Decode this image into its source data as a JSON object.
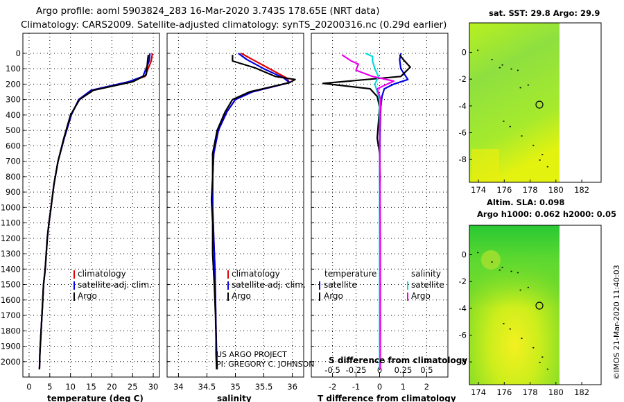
{
  "header": {
    "title_line1": "Argo profile: aoml 5903824_283 16-Mar-2020 3.743S 178.65E (NRT data)",
    "title_line2": "Climatology: CARS2009. Satellite-adjusted climatology: synTS_20200316.nc (0.29d earlier)"
  },
  "colors": {
    "climatology": "#e00000",
    "satellite": "#0000e0",
    "argo": "#000000",
    "sal_sat": "#00dddd",
    "sal_argo": "#ee00ee"
  },
  "chart_data": [
    {
      "type": "line",
      "name": "temperature-profile",
      "xlabel": "temperature (deg C)",
      "xlim": [
        -1.5,
        31.5
      ],
      "xticks": [
        0,
        5,
        10,
        15,
        20,
        25,
        30
      ],
      "ylim": [
        2100,
        0
      ],
      "yticks": [
        0,
        100,
        200,
        300,
        400,
        500,
        600,
        700,
        800,
        900,
        1000,
        1100,
        1200,
        1300,
        1400,
        1500,
        1600,
        1700,
        1800,
        1900,
        2000
      ],
      "legend": {
        "position": "lower-right",
        "entries": [
          "climatology",
          "satellite-adj. clim.",
          "Argo"
        ]
      },
      "series": [
        {
          "name": "climatology",
          "color": "#e00000",
          "x": [
            29.8,
            29.5,
            28,
            24,
            15,
            12,
            10.2,
            8.5,
            7,
            6,
            5.3,
            4.8,
            4.4,
            3.9,
            3.5,
            3.2,
            2.9,
            2.6,
            2.5
          ],
          "y": [
            0,
            50,
            150,
            185,
            240,
            300,
            400,
            550,
            700,
            850,
            1000,
            1100,
            1200,
            1400,
            1500,
            1650,
            1800,
            1950,
            2050
          ]
        },
        {
          "name": "satellite-adj. clim.",
          "color": "#0000e0",
          "x": [
            29.2,
            29,
            27.5,
            24,
            15,
            12,
            10.2,
            8.5,
            7,
            6,
            5.3,
            4.8,
            4.4,
            3.9,
            3.5,
            3.2,
            2.9,
            2.6,
            2.5
          ],
          "y": [
            0,
            50,
            150,
            185,
            240,
            300,
            400,
            550,
            700,
            850,
            1000,
            1100,
            1200,
            1400,
            1500,
            1650,
            1800,
            1950,
            2050
          ]
        },
        {
          "name": "Argo",
          "color": "#000000",
          "x": [
            28.8,
            28.6,
            28.3,
            25,
            15.5,
            12.2,
            10,
            8.4,
            7,
            6,
            5.3,
            4.8,
            4.4,
            3.9,
            3.5,
            3.2,
            2.9,
            2.6,
            2.5
          ],
          "y": [
            10,
            60,
            140,
            185,
            240,
            300,
            400,
            550,
            700,
            850,
            1000,
            1100,
            1200,
            1400,
            1500,
            1650,
            1800,
            1950,
            2050
          ]
        }
      ]
    },
    {
      "type": "line",
      "name": "salinity-profile",
      "xlabel": "salinity",
      "xlim": [
        33.8,
        36.2
      ],
      "xticks": [
        34,
        34.5,
        35,
        35.5,
        36
      ],
      "ylim": [
        2100,
        0
      ],
      "legend": {
        "position": "lower-right",
        "entries": [
          "climatology",
          "satellite-adj. clim.",
          "Argo"
        ]
      },
      "annotation": [
        "US ARGO PROJECT",
        "PI: GREGORY C. JOHNSON"
      ],
      "series": [
        {
          "name": "climatology",
          "color": "#e00000",
          "x": [
            35.1,
            35.3,
            35.6,
            35.9,
            35.95,
            35.3,
            35.0,
            34.85,
            34.7,
            34.62,
            34.6,
            34.6,
            34.62,
            34.64,
            34.65,
            34.66,
            34.67,
            34.68
          ],
          "y": [
            0,
            40,
            100,
            160,
            190,
            250,
            300,
            380,
            500,
            650,
            800,
            1000,
            1200,
            1400,
            1600,
            1800,
            1950,
            2050
          ]
        },
        {
          "name": "satellite-adj. clim.",
          "color": "#0000e0",
          "x": [
            35.05,
            35.2,
            35.5,
            35.85,
            35.95,
            35.3,
            35.0,
            34.85,
            34.7,
            34.62,
            34.6,
            34.6,
            34.62,
            34.64,
            34.65,
            34.66,
            34.67,
            34.68
          ],
          "y": [
            0,
            40,
            100,
            160,
            190,
            250,
            300,
            380,
            500,
            650,
            800,
            1000,
            1200,
            1400,
            1600,
            1800,
            1950,
            2050
          ]
        },
        {
          "name": "Argo",
          "color": "#000000",
          "x": [
            34.95,
            34.95,
            35.35,
            35.7,
            36.05,
            35.95,
            35.25,
            34.95,
            34.82,
            34.68,
            34.6,
            34.6,
            34.58,
            34.6,
            34.6,
            34.63,
            34.65,
            34.66,
            34.66,
            34.67
          ],
          "y": [
            10,
            50,
            95,
            150,
            170,
            190,
            250,
            300,
            380,
            500,
            650,
            800,
            950,
            1100,
            1300,
            1500,
            1700,
            1850,
            1950,
            2050
          ]
        }
      ]
    },
    {
      "type": "line",
      "name": "difference-profile",
      "xlabel": "T difference from climatology",
      "xlabel2": "S difference from climatology",
      "xlim": [
        -2.9,
        2.9
      ],
      "xticks": [
        -2,
        -1,
        0,
        1,
        2
      ],
      "xticks2": [
        "-0.5",
        "-0.25",
        "0",
        "0.25",
        "0.5"
      ],
      "ylim": [
        2100,
        0
      ],
      "legend": {
        "position": "lower",
        "temperature": [
          "satellite",
          "Argo"
        ],
        "salinity": [
          "satellite",
          "Argo"
        ]
      },
      "legend_titles": {
        "temperature": "temperature",
        "salinity": "salinity"
      },
      "series": [
        {
          "name": "T satellite",
          "color": "#0000e0",
          "x": [
            0.9,
            0.85,
            0.9,
            1.2,
            0.6,
            0.2,
            0.1,
            0.05,
            0.02,
            0.0,
            0.02,
            0.02,
            0.02
          ],
          "y": [
            0,
            40,
            100,
            170,
            200,
            230,
            280,
            350,
            500,
            800,
            1200,
            1600,
            2050
          ]
        },
        {
          "name": "T Argo",
          "color": "#000000",
          "x": [
            0.85,
            1.0,
            1.3,
            0.9,
            -2.4,
            -0.4,
            -0.1,
            0.0,
            -0.05,
            -0.1,
            0.0,
            0.02,
            0.0,
            0.02,
            0.03,
            0.02
          ],
          "y": [
            10,
            40,
            90,
            150,
            195,
            230,
            280,
            350,
            450,
            550,
            650,
            800,
            1000,
            1400,
            1800,
            2050
          ]
        },
        {
          "name": "S satellite",
          "color": "#00dddd",
          "x": [
            -0.6,
            -0.3,
            -0.3,
            -0.2,
            -0.05,
            -0.2,
            0.0,
            0.0,
            0.0,
            0.0,
            0.0
          ],
          "y": [
            0,
            20,
            50,
            100,
            150,
            200,
            300,
            500,
            800,
            1400,
            2050
          ]
        },
        {
          "name": "S Argo",
          "color": "#ee00ee",
          "x": [
            -1.6,
            -1.2,
            -0.9,
            -1.0,
            -0.3,
            0.6,
            -0.1,
            0.05,
            0.0,
            0.03,
            0.03
          ],
          "y": [
            10,
            50,
            70,
            110,
            150,
            180,
            230,
            300,
            500,
            1200,
            2050
          ]
        }
      ]
    }
  ],
  "maps": {
    "sst": {
      "title": "sat. SST: 29.8 Argo: 29.9",
      "xticks": [
        "174",
        "176",
        "178",
        "180",
        "182"
      ],
      "yticks": [
        "0",
        "-2",
        "-4",
        "-6",
        "-8"
      ]
    },
    "sla": {
      "title1": "Altim. SLA: 0.098",
      "title2": "Argo h1000: 0.062 h2000: 0.05",
      "xticks": [
        "174",
        "176",
        "178",
        "180",
        "182"
      ],
      "yticks": [
        "0",
        "-2",
        "-4",
        "-6",
        "-8"
      ]
    },
    "lon_range": [
      173.3,
      183.5
    ],
    "lat_range": [
      -9.7,
      2.2
    ],
    "argo_lon": 178.65,
    "argo_lat": -3.743
  },
  "footer": {
    "credit": "©IMOS 21-Mar-2020 11:40:03"
  }
}
